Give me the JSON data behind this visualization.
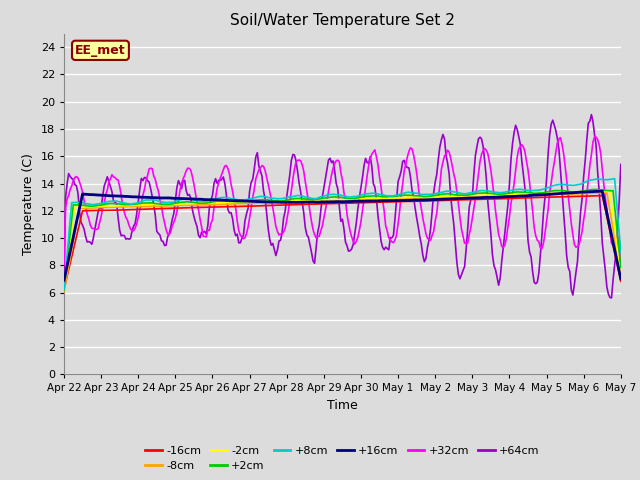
{
  "title": "Soil/Water Temperature Set 2",
  "xlabel": "Time",
  "ylabel": "Temperature (C)",
  "ylim": [
    0,
    25
  ],
  "yticks": [
    0,
    2,
    4,
    6,
    8,
    10,
    12,
    14,
    16,
    18,
    20,
    22,
    24
  ],
  "annotation": "EE_met",
  "annotation_color": "#8B0000",
  "annotation_bg": "#FFFFA0",
  "bg_color": "#DCDCDC",
  "series_order": [
    "-16cm",
    "-8cm",
    "-2cm",
    "+2cm",
    "+8cm",
    "+16cm",
    "+32cm",
    "+64cm"
  ],
  "series": {
    "-16cm": {
      "color": "#FF0000",
      "lw": 1.2
    },
    "-8cm": {
      "color": "#FFA500",
      "lw": 1.2
    },
    "-2cm": {
      "color": "#FFFF00",
      "lw": 1.2
    },
    "+2cm": {
      "color": "#00CC00",
      "lw": 1.2
    },
    "+8cm": {
      "color": "#00CCCC",
      "lw": 1.2
    },
    "+16cm": {
      "color": "#000080",
      "lw": 2.0
    },
    "+32cm": {
      "color": "#FF00FF",
      "lw": 1.2
    },
    "+64cm": {
      "color": "#9900CC",
      "lw": 1.2
    }
  },
  "x_tick_labels": [
    "Apr 22",
    "Apr 23",
    "Apr 24",
    "Apr 25",
    "Apr 26",
    "Apr 27",
    "Apr 28",
    "Apr 29",
    "Apr 30",
    "May 1",
    "May 2",
    "May 3",
    "May 4",
    "May 5",
    "May 6",
    "May 7"
  ],
  "n_points": 361
}
